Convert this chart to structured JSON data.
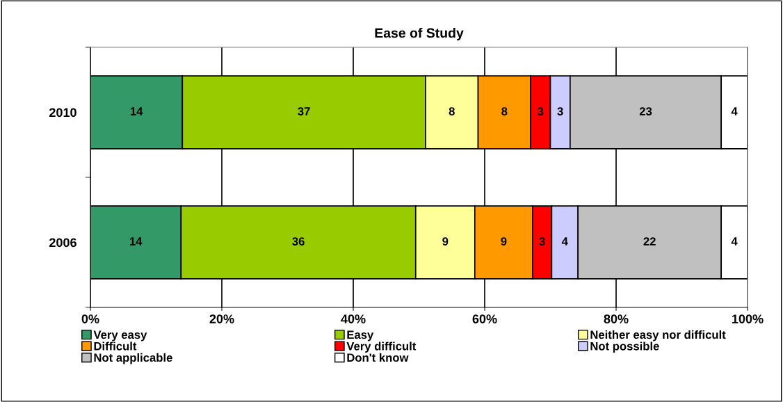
{
  "chart_data": {
    "type": "bar",
    "orientation": "horizontal",
    "stacked": true,
    "title": "Ease of Study",
    "categories": [
      "2010",
      "2006"
    ],
    "series": [
      {
        "name": "Very easy",
        "color": "#339966",
        "values": [
          14,
          13.8
        ],
        "value_labels": [
          "14",
          "14"
        ]
      },
      {
        "name": "Easy",
        "color": "#99cc00",
        "values": [
          37,
          35.7
        ],
        "value_labels": [
          "37",
          "36"
        ]
      },
      {
        "name": "Neither easy nor difficult",
        "color": "#ffff99",
        "values": [
          8,
          9.0
        ],
        "value_labels": [
          "8",
          "9"
        ]
      },
      {
        "name": "Difficult",
        "color": "#ff9900",
        "values": [
          8,
          8.8
        ],
        "value_labels": [
          "8",
          "9"
        ]
      },
      {
        "name": "Very difficult",
        "color": "#ff0000",
        "values": [
          3,
          2.9
        ],
        "value_labels": [
          "3",
          "3"
        ]
      },
      {
        "name": "Not possible",
        "color": "#ccccff",
        "values": [
          3,
          4.0
        ],
        "value_labels": [
          "3",
          "4"
        ]
      },
      {
        "name": "Not applicable",
        "color": "#c0c0c0",
        "values": [
          23,
          21.8
        ],
        "value_labels": [
          "23",
          "22"
        ]
      },
      {
        "name": "Don't know",
        "color": "#ffffff",
        "values": [
          4,
          4.0
        ],
        "value_labels": [
          "4",
          "4"
        ]
      }
    ],
    "xlim": [
      0,
      100
    ],
    "xticks": [
      {
        "value": 0,
        "label": "0%"
      },
      {
        "value": 20,
        "label": "20%"
      },
      {
        "value": 40,
        "label": "40%"
      },
      {
        "value": 60,
        "label": "60%"
      },
      {
        "value": 80,
        "label": "80%"
      },
      {
        "value": 100,
        "label": "100%"
      }
    ],
    "grid": "x",
    "legend": "bottom"
  }
}
